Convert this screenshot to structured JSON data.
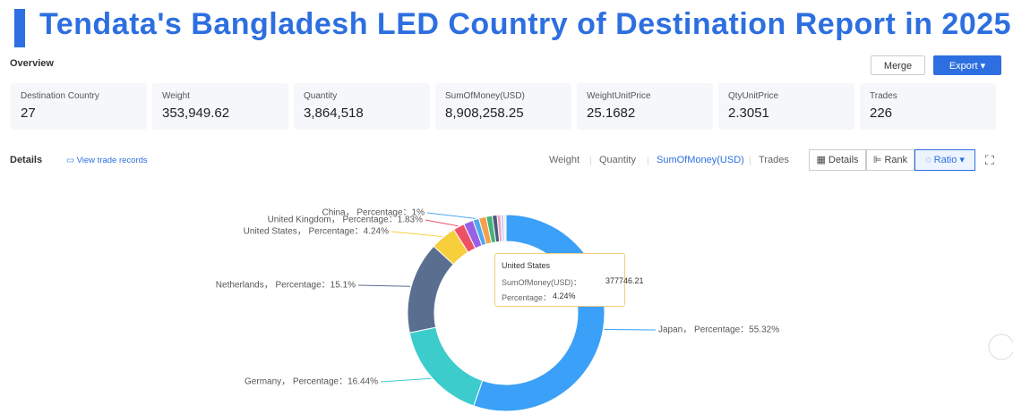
{
  "header": {
    "title": "Tendata's Bangladesh LED Country of Destination Report in 2025"
  },
  "overview": {
    "label": "Overview",
    "merge": "Merge",
    "export": "Export",
    "cards": [
      {
        "label": "Destination Country",
        "value": "27"
      },
      {
        "label": "Weight",
        "value": "353,949.62"
      },
      {
        "label": "Quantity",
        "value": "3,864,518"
      },
      {
        "label": "SumOfMoney(USD)",
        "value": "8,908,258.25"
      },
      {
        "label": "WeightUnitPrice",
        "value": "25.1682"
      },
      {
        "label": "QtyUnitPrice",
        "value": "2.3051"
      },
      {
        "label": "Trades",
        "value": "226"
      }
    ]
  },
  "details": {
    "label": "Details",
    "link": "View trade records",
    "tabs": [
      "Weight",
      "Quantity",
      "SumOfMoney(USD)",
      "Trades"
    ],
    "views": [
      "Details",
      "Rank",
      "Ratio"
    ]
  },
  "tooltip": {
    "title": "United States",
    "rows": [
      {
        "label": "SumOfMoney(USD)：",
        "value": "377746.21"
      },
      {
        "label": "Percentage：",
        "value": "4.24%"
      }
    ]
  },
  "chart_data": {
    "type": "pie",
    "values": [
      55.32,
      16.44,
      15.1,
      4.24,
      1.83,
      1.6,
      1,
      1.2,
      1.0,
      0.8,
      0.6,
      0.5,
      0.37
    ],
    "value_labels": [
      "Japan， Percentage：55.32%",
      "Germany， Percentage：16.44%",
      "Netherlands， Percentage：15.1%",
      "United States， Percentage：4.24%",
      "United Kingdom， Percentage：1.83%",
      null,
      "China， Percentage：1%",
      null,
      null,
      null,
      null,
      null,
      null
    ],
    "colors": [
      "#3ba0f7",
      "#3ccccb",
      "#5a6f8f",
      "#f7cf3d",
      "#ee5164",
      "#9a60e4",
      "#4fa8f0",
      "#f5a04a",
      "#43b37a",
      "#4d5b78",
      "#f0a2c8",
      "#c9d1e8",
      "#e8e8e8"
    ]
  }
}
